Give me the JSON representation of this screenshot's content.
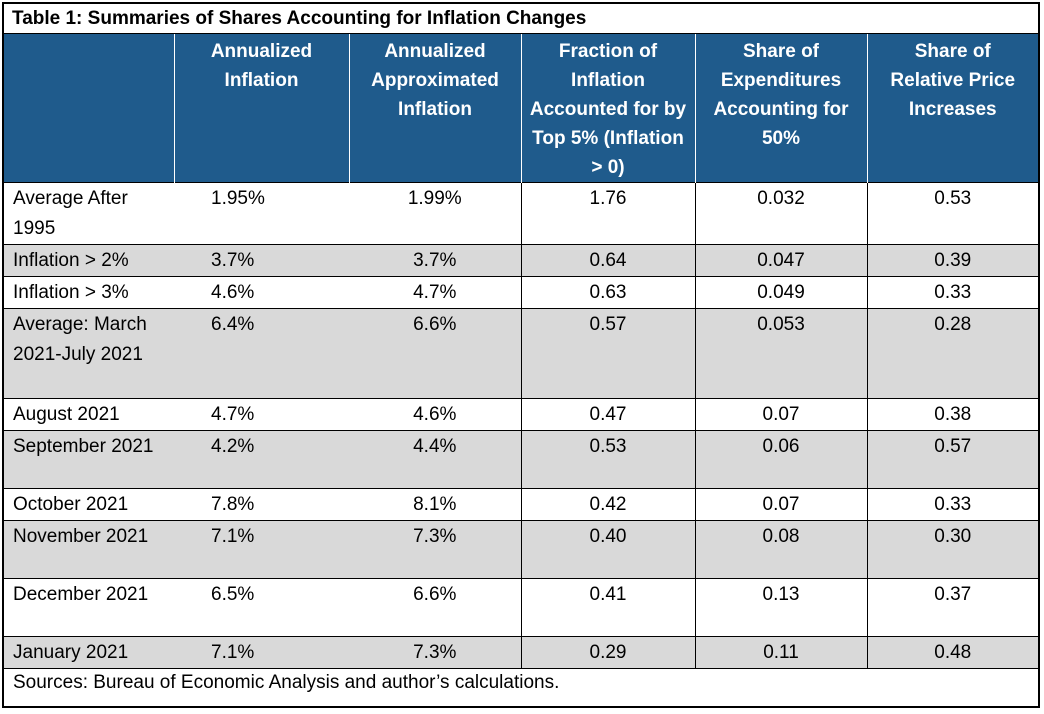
{
  "table": {
    "title": "Table 1: Summaries of Shares Accounting for Inflation Changes",
    "headers": [
      "",
      "Annualized Inflation",
      "Annualized Approximated Inflation",
      "Fraction of Inflation Accounted for by Top 5% (Inflation > 0)",
      "Share of Expenditures Accounting for 50%",
      "Share of Relative Price Increases"
    ],
    "rows": [
      {
        "label": "Average After 1995",
        "values": [
          "1.95%",
          "1.99%",
          "1.76",
          "0.032",
          "0.53"
        ]
      },
      {
        "label": "Inflation > 2%",
        "values": [
          "3.7%",
          "3.7%",
          "0.64",
          "0.047",
          "0.39"
        ]
      },
      {
        "label": "Inflation > 3%",
        "values": [
          "4.6%",
          "4.7%",
          "0.63",
          "0.049",
          "0.33"
        ]
      },
      {
        "label": "Average: March 2021-July 2021",
        "values": [
          "6.4%",
          "6.6%",
          "0.57",
          "0.053",
          "0.28"
        ]
      },
      {
        "label": "August 2021",
        "values": [
          "4.7%",
          "4.6%",
          "0.47",
          "0.07",
          "0.38"
        ]
      },
      {
        "label": "September 2021",
        "values": [
          "4.2%",
          "4.4%",
          "0.53",
          "0.06",
          "0.57"
        ]
      },
      {
        "label": "October 2021",
        "values": [
          "7.8%",
          "8.1%",
          "0.42",
          "0.07",
          "0.33"
        ]
      },
      {
        "label": "November 2021",
        "values": [
          "7.1%",
          "7.3%",
          "0.40",
          "0.08",
          "0.30"
        ]
      },
      {
        "label": "December 2021",
        "values": [
          "6.5%",
          "6.6%",
          "0.41",
          "0.13",
          "0.37"
        ]
      },
      {
        "label": "January 2021",
        "values": [
          "7.1%",
          "7.3%",
          "0.29",
          "0.11",
          "0.48"
        ]
      }
    ],
    "source": "Sources: Bureau of Economic Analysis and author’s calculations."
  },
  "colors": {
    "header_bg": "#1f5b8c",
    "header_text": "#ffffff",
    "shaded_row": "#d9d9d9"
  }
}
